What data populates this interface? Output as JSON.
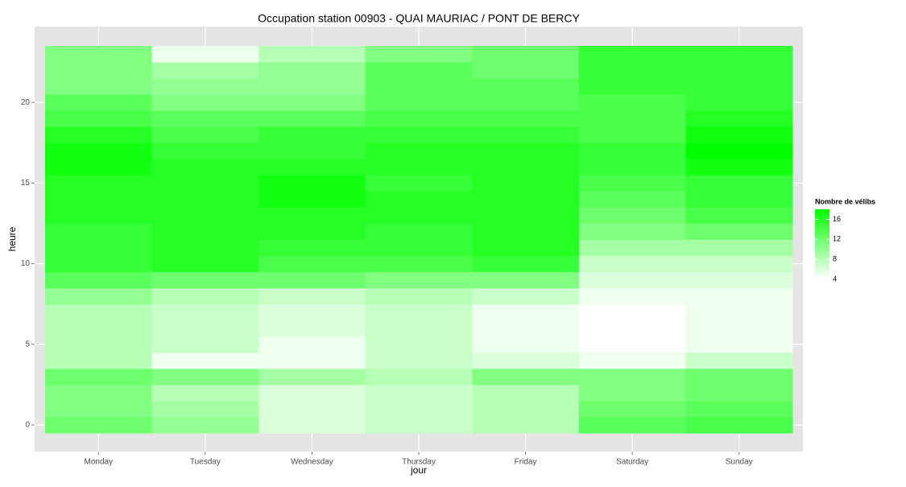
{
  "chart_data": {
    "type": "heatmap",
    "title": "Occupation station 00903 - QUAI MAURIAC  / PONT DE BERCY",
    "x_label": "jour",
    "y_label": "heure",
    "categories": [
      "Monday",
      "Tuesday",
      "Wednesday",
      "Thursday",
      "Friday",
      "Saturday",
      "Sunday"
    ],
    "y": [
      0,
      1,
      2,
      3,
      4,
      5,
      6,
      7,
      8,
      9,
      10,
      11,
      12,
      13,
      14,
      15,
      16,
      17,
      18,
      19,
      20,
      21,
      22,
      23
    ],
    "values": [
      [
        12,
        11,
        11,
        12,
        8,
        8,
        8,
        8,
        10,
        13,
        15,
        15,
        15,
        16,
        16,
        16,
        17,
        17,
        16,
        14,
        13,
        11,
        11,
        11
      ],
      [
        10,
        9,
        8,
        11,
        5,
        7,
        7,
        7,
        8,
        12,
        16,
        16,
        16,
        16,
        16,
        16,
        16,
        15,
        14,
        13,
        11,
        10,
        9,
        5
      ],
      [
        6,
        6,
        6,
        9,
        5,
        5,
        6,
        6,
        7,
        12,
        14,
        15,
        16,
        16,
        17,
        17,
        16,
        15,
        15,
        13,
        11,
        10,
        10,
        8
      ],
      [
        7,
        7,
        7,
        8,
        7,
        7,
        7,
        7,
        8,
        11,
        14,
        15,
        15,
        16,
        16,
        15,
        16,
        16,
        15,
        14,
        13,
        13,
        13,
        11
      ],
      [
        8,
        8,
        8,
        11,
        6,
        5,
        5,
        5,
        7,
        11,
        15,
        16,
        16,
        16,
        16,
        16,
        16,
        16,
        15,
        14,
        13,
        13,
        12,
        12
      ],
      [
        13,
        12,
        11,
        11,
        5,
        4,
        4,
        4,
        5,
        6,
        7,
        9,
        11,
        12,
        13,
        14,
        15,
        15,
        14,
        14,
        14,
        15,
        15,
        15
      ],
      [
        14,
        13,
        12,
        12,
        7,
        5,
        5,
        5,
        5,
        6,
        7,
        9,
        12,
        14,
        15,
        15,
        17,
        18,
        17,
        16,
        15,
        15,
        15,
        15
      ]
    ],
    "ylim": [
      -0.5,
      23.5
    ],
    "yticks": [
      0,
      5,
      10,
      15,
      20
    ],
    "grid": true,
    "colorbar": {
      "title": "Nombre de vélibs",
      "range": [
        4,
        18
      ],
      "ticks": [
        4,
        8,
        12,
        16
      ],
      "low": "#ffffff",
      "high": "#00ff00"
    }
  }
}
